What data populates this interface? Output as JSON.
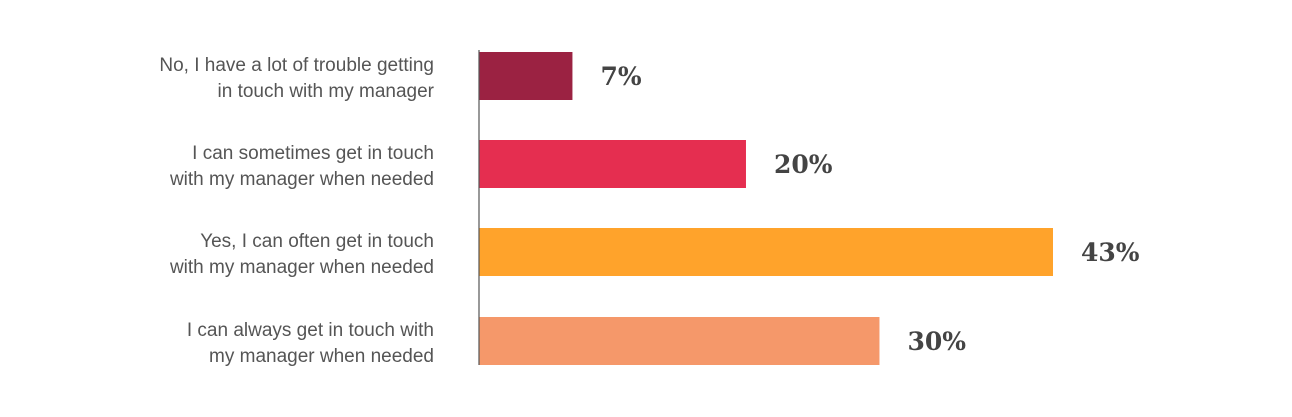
{
  "chart_data": {
    "type": "bar",
    "orientation": "horizontal",
    "categories": [
      "No, I have a lot of trouble getting in touch with my manager",
      "I can sometimes get in touch with my manager when needed",
      "Yes, I can often get in touch with my manager when needed",
      "I can always get in touch with my manager when needed"
    ],
    "category_lines": [
      [
        "No, I have a lot of trouble getting",
        "in touch with my manager"
      ],
      [
        "I can sometimes get in touch",
        "with my manager when needed"
      ],
      [
        "Yes, I can often get in touch",
        "with my manager when needed"
      ],
      [
        "I can always get in touch with",
        "my manager when needed"
      ]
    ],
    "values": [
      7,
      20,
      43,
      30
    ],
    "value_labels": [
      "7%",
      "20%",
      "43%",
      "30%"
    ],
    "colors": [
      "#9b2242",
      "#e52e50",
      "#ffa32b",
      "#f5986a"
    ],
    "axis_color": "#555555",
    "xlim": [
      0,
      43
    ],
    "grid": false,
    "legend": "none"
  }
}
